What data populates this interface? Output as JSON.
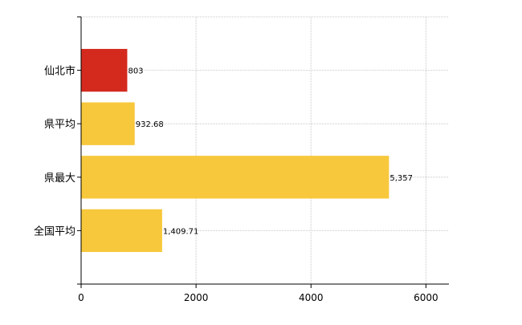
{
  "chart_data": {
    "type": "bar",
    "orientation": "horizontal",
    "categories": [
      "仙北市",
      "県平均",
      "県最大",
      "全国平均"
    ],
    "values": [
      803,
      932.68,
      5357,
      1409.71
    ],
    "value_labels": [
      "803",
      "932.68",
      "5,357",
      "1,409.71"
    ],
    "bar_colors": [
      "#d42a1e",
      "#f7c83c",
      "#f7c83c",
      "#f7c83c"
    ],
    "xlim": [
      0,
      6400
    ],
    "xticks": [
      0,
      2000,
      4000,
      6000
    ],
    "xtick_labels": [
      "0",
      "2000",
      "4000",
      "6000"
    ],
    "grid": true,
    "title": "",
    "xlabel": "",
    "ylabel": ""
  }
}
